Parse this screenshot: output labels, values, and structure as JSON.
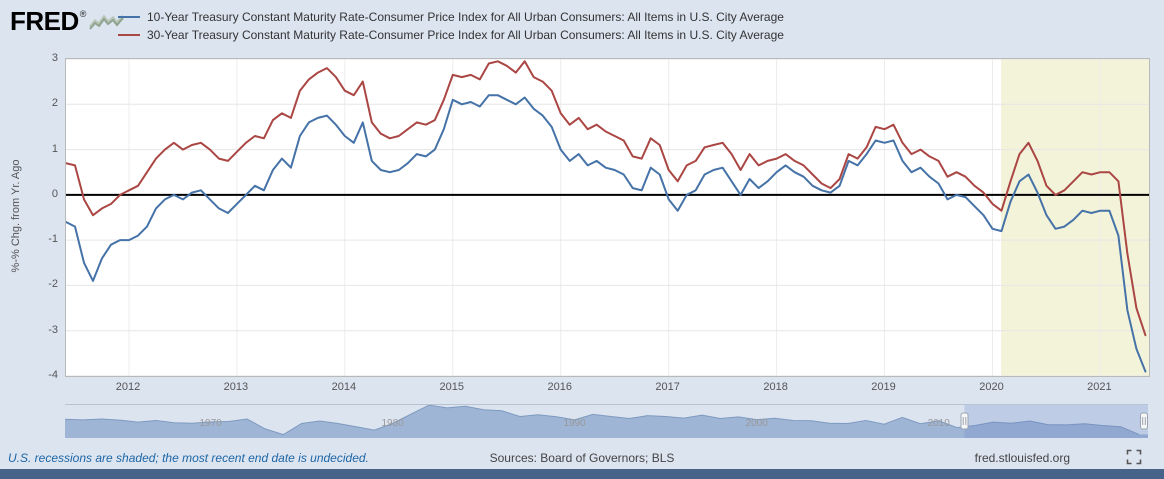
{
  "header": {
    "logo": "FRED",
    "registered": "®"
  },
  "chart_data": {
    "type": "line",
    "title": "",
    "xlabel": "",
    "ylabel": "%-% Chg. from Yr. Ago",
    "y_ticks": [
      3,
      2,
      1,
      0,
      -1,
      -2,
      -3,
      -4
    ],
    "x_ticks": [
      2012,
      2013,
      2014,
      2015,
      2016,
      2017,
      2018,
      2019,
      2020,
      2021
    ],
    "ylim": [
      -4,
      3
    ],
    "xlim": [
      2011.4167,
      2021.45
    ],
    "x_start": 2011.4167,
    "x_step": 0.0833333,
    "zero_line": 0,
    "grid": true,
    "legend_position": "top",
    "shaded_region": {
      "from": 2020.08,
      "to": 2021.45,
      "color": "#f3f3da",
      "meaning": "U.S. recession (most recent end date undecided)"
    },
    "series": [
      {
        "name": "10-Year Treasury Constant Maturity Rate-Consumer Price Index for All Urban Consumers: All Items in U.S. City Average",
        "color": "#4572a7",
        "values": [
          -0.6,
          -0.7,
          -1.5,
          -1.9,
          -1.4,
          -1.1,
          -1.0,
          -1.0,
          -0.9,
          -0.7,
          -0.3,
          -0.1,
          0.0,
          -0.1,
          0.05,
          0.1,
          -0.1,
          -0.3,
          -0.4,
          -0.2,
          0.0,
          0.2,
          0.1,
          0.55,
          0.8,
          0.6,
          1.3,
          1.6,
          1.7,
          1.75,
          1.55,
          1.3,
          1.15,
          1.6,
          0.75,
          0.55,
          0.5,
          0.55,
          0.7,
          0.9,
          0.85,
          1.0,
          1.45,
          2.1,
          2.0,
          2.05,
          1.95,
          2.2,
          2.2,
          2.1,
          2.0,
          2.15,
          1.9,
          1.75,
          1.5,
          1.0,
          0.75,
          0.9,
          0.65,
          0.75,
          0.6,
          0.55,
          0.45,
          0.15,
          0.1,
          0.6,
          0.45,
          -0.1,
          -0.35,
          0.0,
          0.1,
          0.45,
          0.55,
          0.6,
          0.3,
          0.0,
          0.35,
          0.15,
          0.3,
          0.5,
          0.65,
          0.5,
          0.4,
          0.2,
          0.1,
          0.05,
          0.2,
          0.75,
          0.65,
          0.9,
          1.2,
          1.15,
          1.2,
          0.75,
          0.5,
          0.6,
          0.4,
          0.25,
          -0.1,
          0.0,
          -0.05,
          -0.25,
          -0.45,
          -0.75,
          -0.8,
          -0.15,
          0.3,
          0.45,
          0.05,
          -0.45,
          -0.75,
          -0.7,
          -0.55,
          -0.35,
          -0.4,
          -0.35,
          -0.35,
          -0.9,
          -2.55,
          -3.4,
          -3.9
        ]
      },
      {
        "name": "30-Year Treasury Constant Maturity Rate-Consumer Price Index for All Urban Consumers: All Items in U.S. City Average",
        "color": "#aa4643",
        "values": [
          0.7,
          0.65,
          -0.1,
          -0.45,
          -0.3,
          -0.2,
          0.0,
          0.1,
          0.2,
          0.5,
          0.8,
          1.0,
          1.15,
          1.0,
          1.1,
          1.15,
          1.0,
          0.8,
          0.75,
          0.95,
          1.15,
          1.3,
          1.25,
          1.65,
          1.8,
          1.7,
          2.3,
          2.55,
          2.7,
          2.8,
          2.6,
          2.3,
          2.2,
          2.5,
          1.6,
          1.35,
          1.25,
          1.3,
          1.45,
          1.6,
          1.55,
          1.65,
          2.1,
          2.65,
          2.6,
          2.65,
          2.55,
          2.9,
          2.95,
          2.85,
          2.7,
          2.95,
          2.6,
          2.5,
          2.3,
          1.8,
          1.55,
          1.7,
          1.45,
          1.55,
          1.4,
          1.3,
          1.2,
          0.85,
          0.8,
          1.25,
          1.1,
          0.55,
          0.3,
          0.65,
          0.75,
          1.05,
          1.1,
          1.15,
          0.9,
          0.55,
          0.9,
          0.65,
          0.75,
          0.8,
          0.9,
          0.75,
          0.65,
          0.45,
          0.25,
          0.15,
          0.35,
          0.9,
          0.8,
          1.05,
          1.5,
          1.45,
          1.55,
          1.15,
          0.9,
          1.0,
          0.85,
          0.75,
          0.4,
          0.5,
          0.4,
          0.2,
          0.05,
          -0.2,
          -0.35,
          0.3,
          0.9,
          1.15,
          0.75,
          0.2,
          0.0,
          0.1,
          0.3,
          0.5,
          0.45,
          0.5,
          0.5,
          0.3,
          -1.3,
          -2.5,
          -3.1
        ]
      }
    ]
  },
  "navigator": {
    "x_start": 1962,
    "x_end": 2021.5,
    "labels": [
      1970,
      1980,
      1990,
      2000,
      2010
    ],
    "selection": {
      "from": 2011.4167,
      "to": 2021.5
    },
    "fill": "#94add0",
    "line": "#7e9ac0",
    "mask": "rgba(102,133,194,0.25)",
    "values": [
      2.8,
      2.5,
      2.9,
      2.4,
      1.5,
      2.2,
      1.2,
      1.0,
      1.6,
      1.8,
      2.9,
      -1.5,
      -4.0,
      0.9,
      2.0,
      0.9,
      -0.5,
      -2.0,
      0.9,
      5.0,
      9.0,
      7.8,
      8.5,
      7.0,
      6.5,
      4.0,
      4.8,
      3.9,
      2.5,
      4.9,
      4.0,
      3.1,
      4.4,
      4.0,
      3.3,
      4.6,
      3.1,
      3.8,
      2.6,
      3.2,
      2.2,
      2.1,
      1.0,
      0.9,
      2.2,
      0.6,
      3.6,
      0.8,
      2.1,
      -0.9,
      0.0,
      1.5,
      1.0,
      2.0,
      0.4,
      0.3,
      0.8,
      0.0,
      -0.5,
      -3.9
    ]
  },
  "footer": {
    "note": "U.S. recessions are shaded; the most recent end date is undecided.",
    "sources": "Sources: Board of Governors; BLS",
    "site": "fred.stlouisfed.org"
  }
}
